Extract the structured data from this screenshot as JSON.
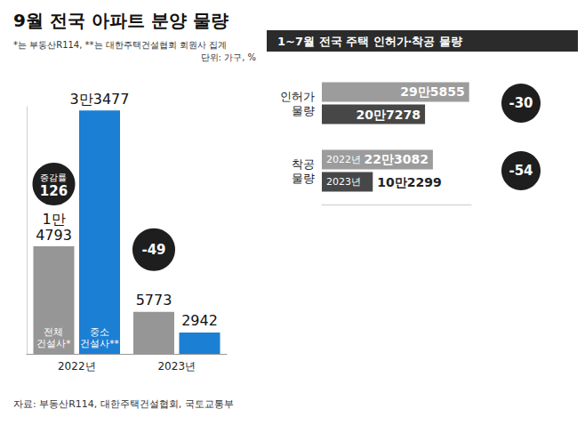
{
  "chart_data": [
    {
      "type": "bar",
      "title": "9월 전국 아파트 분양 물량",
      "subtitle": "*는 부동산R114, **는 대한주택건설협회 회원사 집계",
      "unit": "단위: 가구, %",
      "source": "자료: 부동산R114, 대한주택건설협회, 국토교통부",
      "categories": [
        "2022년",
        "2023년"
      ],
      "series": [
        {
          "name": "전체 건설사*",
          "color": "#969696",
          "values": [
            14793,
            5773
          ],
          "value_labels": [
            "1만4793",
            "5773"
          ]
        },
        {
          "name": "중소 건설사**",
          "color": "#1b7fd3",
          "values": [
            33477,
            2942
          ],
          "value_labels": [
            "3만3477",
            "2942"
          ]
        }
      ],
      "change_label": "증감률",
      "changes": [
        126,
        -49
      ],
      "ylim": [
        0,
        34000
      ],
      "tick_labels": "x",
      "grid": false,
      "data_labels": true
    },
    {
      "type": "bar",
      "orientation": "horizontal",
      "title": "1~7월 전국 주택 인허가·착공 물량",
      "categories": [
        "인허가 물량",
        "착공 물량"
      ],
      "series": [
        {
          "name": "2022년",
          "color": "#9c9c9c",
          "values": [
            295855,
            223082
          ],
          "value_labels": [
            "29만5855",
            "22만3082"
          ]
        },
        {
          "name": "2023년",
          "color": "#474747",
          "values": [
            207278,
            102299
          ],
          "value_labels": [
            "20만7278",
            "10만2299"
          ]
        }
      ],
      "changes": [
        -30,
        -54
      ],
      "xlim": [
        0,
        300000
      ],
      "tick_labels": "y",
      "grid": false,
      "data_labels": true
    }
  ]
}
